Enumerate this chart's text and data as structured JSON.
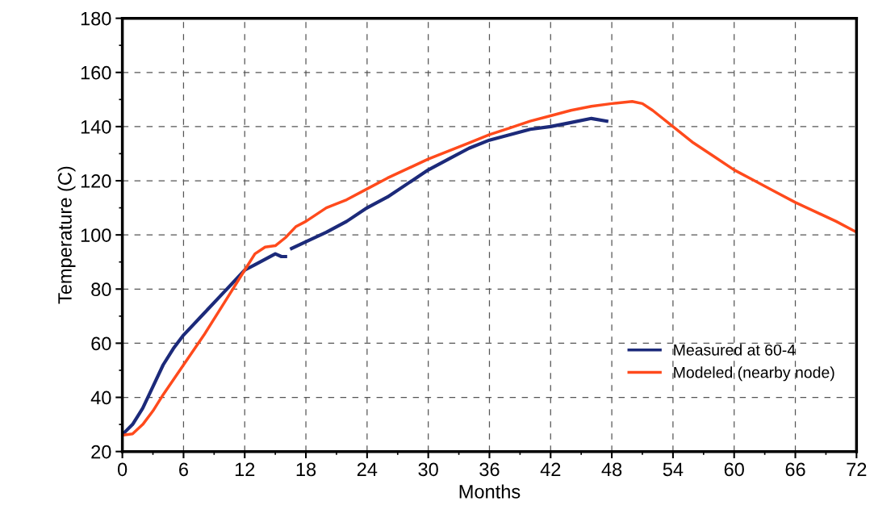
{
  "chart_data": {
    "type": "line",
    "xlabel": "Months",
    "ylabel": "Temperature (C)",
    "xlim": [
      0,
      72
    ],
    "xticks": [
      0,
      6,
      12,
      18,
      24,
      30,
      36,
      42,
      48,
      54,
      60,
      66,
      72
    ],
    "ylim": [
      20,
      180
    ],
    "yticks": [
      20,
      40,
      60,
      80,
      100,
      120,
      140,
      160,
      180
    ],
    "grid": true,
    "legend": "bottom right",
    "line_style": "solid",
    "marker": "none",
    "series": [
      {
        "name": "Measured at 60-4",
        "color": "#1c2a7a",
        "x": [
          0.2,
          1,
          2,
          3,
          4,
          5,
          6,
          8,
          10,
          11,
          12,
          13,
          14,
          15,
          15.6,
          16,
          16.3,
          16.6,
          18,
          20,
          22,
          24,
          26,
          28,
          30,
          32,
          34,
          36,
          38,
          40,
          42,
          44,
          46,
          47.5
        ],
        "values": [
          27,
          30,
          36,
          44,
          52,
          58,
          63,
          71,
          79,
          83,
          87,
          89,
          91,
          93,
          92,
          92,
          null,
          95,
          97.5,
          101,
          105,
          110,
          114,
          119,
          124,
          128,
          132,
          135,
          137,
          139,
          140,
          141.5,
          143,
          142
        ]
      },
      {
        "name": "Modeled (nearby node)",
        "color": "#ff4a1c",
        "x": [
          0,
          1,
          2,
          3,
          4,
          6,
          8,
          10,
          12,
          13,
          14,
          15,
          16,
          17,
          18,
          20,
          22,
          24,
          26,
          28,
          30,
          32,
          34,
          36,
          38,
          40,
          42,
          44,
          46,
          48,
          50,
          51,
          52,
          54,
          56,
          58,
          60,
          62,
          64,
          66,
          68,
          70,
          72
        ],
        "values": [
          26,
          26.5,
          30,
          35,
          41,
          52,
          63,
          75,
          87,
          93,
          95.5,
          96,
          99,
          103,
          105,
          110,
          113,
          117,
          121,
          124.5,
          128,
          131,
          134,
          137,
          139.5,
          142,
          144,
          146,
          147.5,
          148.5,
          149.3,
          148.5,
          146,
          140,
          134,
          129,
          124,
          120,
          116,
          112,
          108.5,
          105,
          101
        ]
      }
    ]
  }
}
